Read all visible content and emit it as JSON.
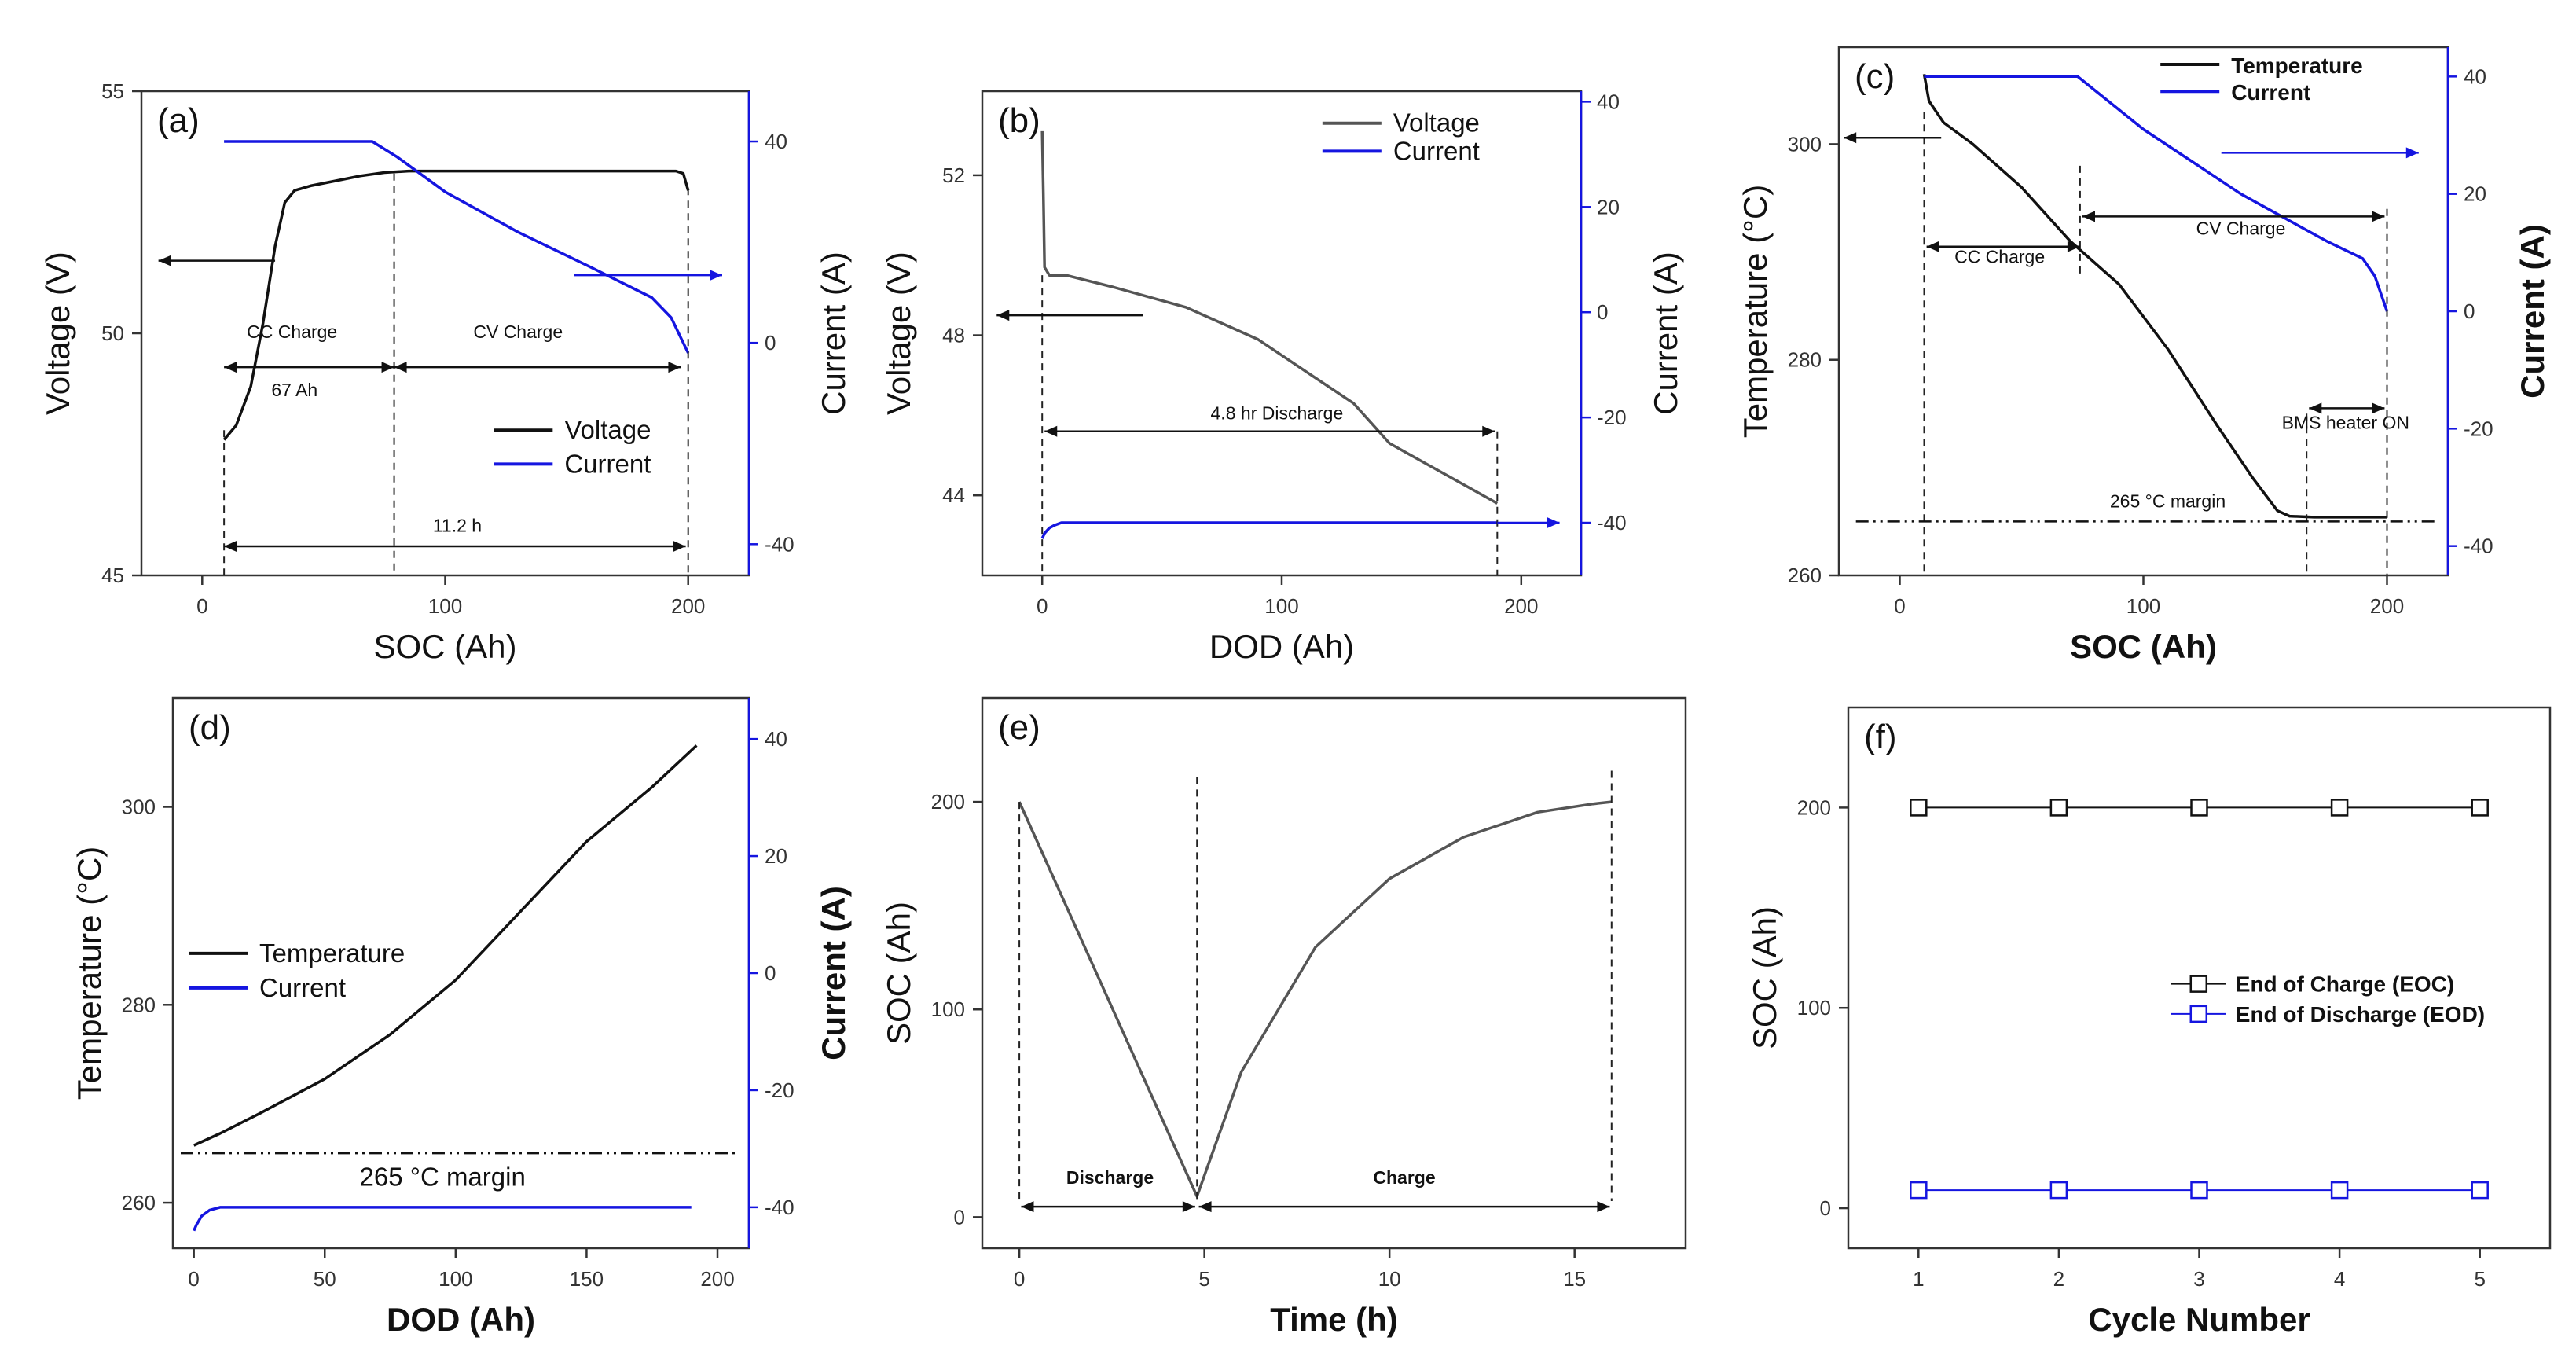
{
  "colors": {
    "black": "#111111",
    "blue": "#1515e0",
    "gray": "#555555"
  },
  "chart_data": [
    {
      "id": "a",
      "panel_label": "(a)",
      "type": "line",
      "xlabel": "SOC (Ah)",
      "ylabel": "Voltage (V)",
      "y2label": "Current (A)",
      "xlim": [
        -25,
        225
      ],
      "ylim": [
        45,
        55
      ],
      "y2lim": [
        -46.2,
        50
      ],
      "xticks": [
        0,
        100,
        200
      ],
      "xtick_labels": [
        "0",
        "100",
        "200"
      ],
      "yticks": [
        45,
        50,
        55
      ],
      "ytick_labels": [
        "45",
        "50",
        "55"
      ],
      "y2ticks": [
        -40,
        0,
        40
      ],
      "y2tick_labels": [
        "-40",
        "0",
        "40"
      ],
      "series": [
        {
          "name": "Voltage",
          "axis": "left",
          "color": "#111111",
          "x": [
            9,
            14,
            20,
            25,
            30,
            34,
            38,
            45,
            55,
            65,
            75,
            85,
            100,
            150,
            195,
            198,
            200
          ],
          "y": [
            47.8,
            48.1,
            48.9,
            50.2,
            51.8,
            52.7,
            52.95,
            53.05,
            53.15,
            53.25,
            53.32,
            53.35,
            53.35,
            53.35,
            53.35,
            53.3,
            52.95
          ]
        },
        {
          "name": "Current",
          "axis": "right",
          "color": "#1515e0",
          "x": [
            9,
            70,
            80,
            100,
            130,
            160,
            185,
            193,
            197,
            200
          ],
          "y": [
            40,
            40,
            37,
            30,
            22,
            15,
            9,
            5,
            1,
            -2
          ]
        }
      ],
      "legend": [
        "Voltage",
        "Current"
      ],
      "legend_position": "lower-right",
      "annotations": [
        "CC Charge",
        "CV Charge",
        "67 Ah",
        "11.2 h"
      ]
    },
    {
      "id": "b",
      "panel_label": "(b)",
      "type": "line",
      "xlabel": "DOD (Ah)",
      "ylabel": "Voltage (V)",
      "y2label": "Current (A)",
      "xlim": [
        -25,
        225
      ],
      "ylim": [
        42,
        54.1
      ],
      "y2lim": [
        -50,
        42
      ],
      "xticks": [
        0,
        100,
        200
      ],
      "xtick_labels": [
        "0",
        "100",
        "200"
      ],
      "yticks": [
        44,
        48,
        52
      ],
      "ytick_labels": [
        "44",
        "48",
        "52"
      ],
      "y2ticks": [
        -40,
        -20,
        0,
        20,
        40
      ],
      "y2tick_labels": [
        "-40",
        "-20",
        "0",
        "20",
        "40"
      ],
      "series": [
        {
          "name": "Voltage",
          "axis": "left",
          "color": "#555555",
          "x": [
            0,
            0.5,
            1,
            3,
            10,
            30,
            60,
            90,
            110,
            130,
            145,
            160,
            175,
            190
          ],
          "y": [
            53.1,
            51.5,
            49.7,
            49.5,
            49.5,
            49.2,
            48.7,
            47.9,
            47.1,
            46.3,
            45.3,
            44.8,
            44.3,
            43.8
          ]
        },
        {
          "name": "Current",
          "axis": "right",
          "color": "#1515e0",
          "x": [
            0,
            1,
            3,
            5,
            8,
            190
          ],
          "y": [
            -43,
            -42,
            -41,
            -40.5,
            -40,
            -40
          ]
        }
      ],
      "legend": [
        "Voltage",
        "Current"
      ],
      "legend_position": "top-right",
      "annotations": [
        "4.8 hr Discharge"
      ]
    },
    {
      "id": "c",
      "panel_label": "(c)",
      "type": "line",
      "xlabel": "SOC (Ah)",
      "ylabel": "Temperature (°C)",
      "y2label": "Current (A)",
      "xlim": [
        -25,
        225
      ],
      "ylim": [
        260,
        309
      ],
      "y2lim": [
        -45,
        45
      ],
      "xticks": [
        0,
        100,
        200
      ],
      "xtick_labels": [
        "0",
        "100",
        "200"
      ],
      "yticks": [
        260,
        280,
        300
      ],
      "ytick_labels": [
        "260",
        "280",
        "300"
      ],
      "y2ticks": [
        -40,
        -20,
        0,
        20,
        40
      ],
      "y2tick_labels": [
        "-40",
        "-20",
        "0",
        "20",
        "40"
      ],
      "series": [
        {
          "name": "Temperature",
          "axis": "left",
          "color": "#111111",
          "x": [
            10,
            12,
            18,
            30,
            50,
            70,
            75,
            90,
            110,
            130,
            145,
            155,
            160,
            170,
            200
          ],
          "y": [
            306.5,
            304,
            302,
            300,
            296,
            291,
            290,
            287,
            281,
            274,
            269,
            266,
            265.5,
            265.4,
            265.4
          ]
        },
        {
          "name": "Current",
          "axis": "right",
          "color": "#1515e0",
          "x": [
            10,
            73,
            100,
            140,
            175,
            190,
            195,
            200
          ],
          "y": [
            40,
            40,
            31,
            20,
            12,
            9,
            6,
            0
          ]
        }
      ],
      "legend": [
        "Temperature",
        "Current"
      ],
      "legend_position": "top",
      "annotations": [
        "CC Charge",
        "CV Charge",
        "BMS heater ON",
        "265 °C margin"
      ]
    },
    {
      "id": "d",
      "panel_label": "(d)",
      "type": "line",
      "xlabel": "DOD (Ah)",
      "ylabel": "Temperature (°C)",
      "y2label": "Current (A)",
      "xlim": [
        -8,
        212
      ],
      "ylim": [
        255.4,
        311
      ],
      "y2lim": [
        -47,
        47
      ],
      "xticks": [
        0,
        50,
        100,
        150,
        200
      ],
      "xtick_labels": [
        "0",
        "50",
        "100",
        "150",
        "200"
      ],
      "yticks": [
        260,
        280,
        300
      ],
      "ytick_labels": [
        "260",
        "280",
        "300"
      ],
      "y2ticks": [
        -40,
        -20,
        0,
        20,
        40
      ],
      "y2tick_labels": [
        "-40",
        "-20",
        "0",
        "20",
        "40"
      ],
      "series": [
        {
          "name": "Temperature",
          "axis": "left",
          "color": "#111111",
          "x": [
            0,
            10,
            25,
            50,
            75,
            100,
            125,
            150,
            175,
            192
          ],
          "y": [
            265.8,
            267,
            269,
            272.5,
            277,
            282.5,
            289.5,
            296.5,
            302,
            306.2
          ]
        },
        {
          "name": "Current",
          "axis": "right",
          "color": "#1515e0",
          "x": [
            0,
            1,
            3,
            6,
            10,
            190
          ],
          "y": [
            -44,
            -43,
            -41.5,
            -40.5,
            -40,
            -40
          ]
        }
      ],
      "legend": [
        "Temperature",
        "Current"
      ],
      "legend_position": "middle-left",
      "annotations": [
        "265 °C margin"
      ]
    },
    {
      "id": "e",
      "panel_label": "(e)",
      "type": "line",
      "xlabel": "Time (h)",
      "ylabel": "SOC (Ah)",
      "xlim": [
        -1,
        18
      ],
      "ylim": [
        -15,
        250
      ],
      "xticks": [
        0,
        5,
        10,
        15
      ],
      "xtick_labels": [
        "0",
        "5",
        "10",
        "15"
      ],
      "yticks": [
        0,
        100,
        200
      ],
      "ytick_labels": [
        "0",
        "100",
        "200"
      ],
      "series": [
        {
          "name": "SOC",
          "axis": "left",
          "color": "#555555",
          "x": [
            0,
            4.8,
            6,
            8,
            10,
            12,
            14,
            15.5,
            16
          ],
          "y": [
            200,
            10,
            70,
            130,
            163,
            183,
            195,
            199,
            200
          ]
        }
      ],
      "annotations": [
        "Discharge",
        "Charge"
      ]
    },
    {
      "id": "f",
      "panel_label": "(f)",
      "type": "scatter",
      "xlabel": "Cycle Number",
      "ylabel": "SOC (Ah)",
      "xlim": [
        0.5,
        5.5
      ],
      "ylim": [
        -20,
        250
      ],
      "xticks": [
        1,
        2,
        3,
        4,
        5
      ],
      "xtick_labels": [
        "1",
        "2",
        "3",
        "4",
        "5"
      ],
      "yticks": [
        0,
        100,
        200
      ],
      "ytick_labels": [
        "0",
        "100",
        "200"
      ],
      "series": [
        {
          "name": "End of Charge (EOC)",
          "axis": "left",
          "color": "#111111",
          "x": [
            1,
            2,
            3,
            4,
            5
          ],
          "y": [
            200,
            200,
            200,
            200,
            200
          ]
        },
        {
          "name": "End of Discharge (EOD)",
          "axis": "left",
          "color": "#1515e0",
          "x": [
            1,
            2,
            3,
            4,
            5
          ],
          "y": [
            9,
            9,
            9,
            9,
            9
          ]
        }
      ],
      "legend": [
        "End of Charge (EOC)",
        "End of Discharge (EOD)"
      ],
      "legend_position": "middle-right"
    }
  ]
}
